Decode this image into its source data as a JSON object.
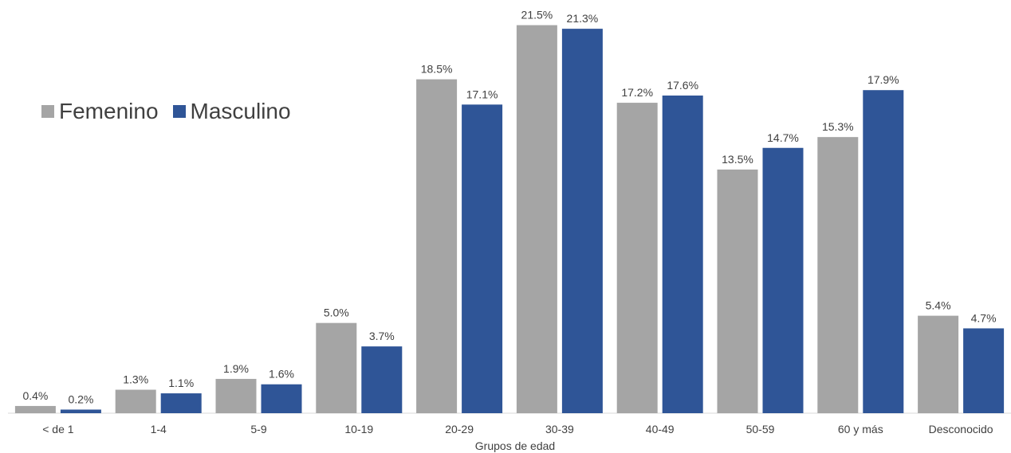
{
  "chart_data": {
    "type": "bar",
    "categories": [
      "< de 1",
      "1-4",
      "5-9",
      "10-19",
      "20-29",
      "30-39",
      "40-49",
      "50-59",
      "60 y más",
      "Desconocido"
    ],
    "series": [
      {
        "name": "Femenino",
        "color": "#a5a5a5",
        "values": [
          0.4,
          1.3,
          1.9,
          5.0,
          18.5,
          21.5,
          17.2,
          13.5,
          15.3,
          5.4
        ],
        "labels": [
          "0.4%",
          "1.3%",
          "1.9%",
          "5.0%",
          "18.5%",
          "21.5%",
          "17.2%",
          "13.5%",
          "15.3%",
          "5.4%"
        ]
      },
      {
        "name": "Masculino",
        "color": "#2f5597",
        "values": [
          0.2,
          1.1,
          1.6,
          3.7,
          17.1,
          21.3,
          17.6,
          14.7,
          17.9,
          4.7
        ],
        "labels": [
          "0.2%",
          "1.1%",
          "1.6%",
          "3.7%",
          "17.1%",
          "21.3%",
          "17.6%",
          "14.7%",
          "17.9%",
          "4.7%"
        ]
      }
    ],
    "xlabel": "Grupos de edad",
    "ylabel": "",
    "ylim": [
      0,
      22
    ],
    "grid": false,
    "legend": "top-left"
  }
}
